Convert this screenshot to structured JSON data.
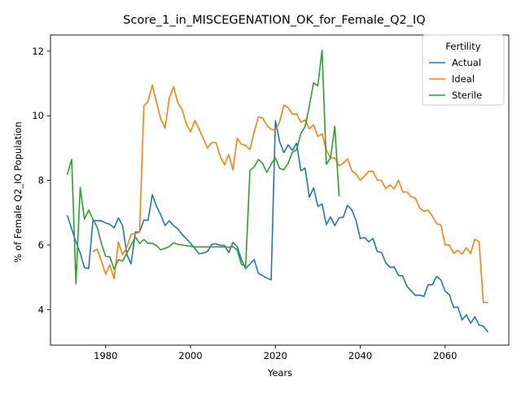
{
  "chart_data": {
    "type": "line",
    "title": "Score_1_in_MISCEGENATION_OK_for_Female_Q2_IQ",
    "xlabel": "Years",
    "ylabel": "% of Female Q2_IQ Population",
    "xlim": [
      1967,
      2075
    ],
    "ylim": [
      2.9,
      12.5
    ],
    "x_ticks": [
      1980,
      2000,
      2020,
      2040,
      2060
    ],
    "y_ticks": [
      4,
      6,
      8,
      10,
      12
    ],
    "grid": false,
    "legend": {
      "title": "Fertility",
      "placement": "top-right",
      "entries": [
        "Actual",
        "Ideal",
        "Sterile"
      ]
    },
    "series": [
      {
        "name": "Actual",
        "color": "#1f77b4",
        "points": [
          [
            1971,
            6.9
          ],
          [
            1972,
            6.5
          ],
          [
            1973,
            6.1
          ],
          [
            1974,
            5.75
          ],
          [
            1975,
            5.3
          ],
          [
            1976,
            5.27
          ],
          [
            1977,
            6.75
          ],
          [
            1978,
            6.75
          ],
          [
            1979,
            6.75
          ],
          [
            1980,
            6.68
          ],
          [
            1981,
            6.64
          ],
          [
            1982,
            6.53
          ],
          [
            1983,
            6.84
          ],
          [
            1984,
            6.6
          ],
          [
            1985,
            5.7
          ],
          [
            1986,
            5.42
          ],
          [
            1987,
            6.4
          ],
          [
            1988,
            6.4
          ],
          [
            1989,
            6.77
          ],
          [
            1990,
            6.77
          ],
          [
            1991,
            7.56
          ],
          [
            1992,
            7.2
          ],
          [
            1993,
            6.93
          ],
          [
            1994,
            6.6
          ],
          [
            1995,
            6.75
          ],
          [
            1996,
            6.6
          ],
          [
            1997,
            6.5
          ],
          [
            1998,
            6.33
          ],
          [
            1999,
            6.2
          ],
          [
            2000,
            6.05
          ],
          [
            2001,
            5.9
          ],
          [
            2002,
            5.73
          ],
          [
            2003,
            5.75
          ],
          [
            2004,
            5.8
          ],
          [
            2005,
            6.02
          ],
          [
            2006,
            6.04
          ],
          [
            2007,
            5.99
          ],
          [
            2008,
            5.99
          ],
          [
            2009,
            5.76
          ],
          [
            2010,
            6.08
          ],
          [
            2011,
            5.95
          ],
          [
            2012,
            5.55
          ],
          [
            2013,
            5.27
          ],
          [
            2014,
            5.41
          ],
          [
            2015,
            5.55
          ],
          [
            2016,
            5.12
          ],
          [
            2017,
            5.05
          ],
          [
            2018,
            4.98
          ],
          [
            2019,
            4.92
          ],
          [
            2020,
            9.85
          ],
          [
            2021,
            9.2
          ],
          [
            2022,
            8.86
          ],
          [
            2023,
            9.1
          ],
          [
            2024,
            8.93
          ],
          [
            2025,
            9.15
          ],
          [
            2026,
            8.3
          ],
          [
            2027,
            8.38
          ],
          [
            2028,
            7.48
          ],
          [
            2029,
            7.77
          ],
          [
            2030,
            7.2
          ],
          [
            2031,
            7.27
          ],
          [
            2032,
            6.63
          ],
          [
            2033,
            6.87
          ],
          [
            2034,
            6.6
          ],
          [
            2035,
            6.84
          ],
          [
            2036,
            6.86
          ],
          [
            2037,
            7.23
          ],
          [
            2038,
            7.09
          ],
          [
            2039,
            6.76
          ],
          [
            2040,
            6.2
          ],
          [
            2041,
            6.23
          ],
          [
            2042,
            6.1
          ],
          [
            2043,
            6.2
          ],
          [
            2044,
            5.8
          ],
          [
            2045,
            5.77
          ],
          [
            2046,
            5.45
          ],
          [
            2047,
            5.31
          ],
          [
            2048,
            5.32
          ],
          [
            2049,
            5.06
          ],
          [
            2050,
            5.04
          ],
          [
            2051,
            4.72
          ],
          [
            2052,
            4.58
          ],
          [
            2053,
            4.44
          ],
          [
            2054,
            4.45
          ],
          [
            2055,
            4.41
          ],
          [
            2056,
            4.77
          ],
          [
            2057,
            4.77
          ],
          [
            2058,
            5.03
          ],
          [
            2059,
            4.92
          ],
          [
            2060,
            4.57
          ],
          [
            2061,
            4.46
          ],
          [
            2062,
            4.07
          ],
          [
            2063,
            4.08
          ],
          [
            2064,
            3.68
          ],
          [
            2065,
            3.84
          ],
          [
            2066,
            3.58
          ],
          [
            2067,
            3.78
          ],
          [
            2068,
            3.52
          ],
          [
            2069,
            3.49
          ],
          [
            2070,
            3.32
          ]
        ]
      },
      {
        "name": "Ideal",
        "color": "#ff7f0e",
        "points": [
          [
            1977,
            5.8
          ],
          [
            1978,
            5.87
          ],
          [
            1979,
            5.5
          ],
          [
            1980,
            5.1
          ],
          [
            1981,
            5.38
          ],
          [
            1982,
            4.96
          ],
          [
            1983,
            6.1
          ],
          [
            1984,
            5.7
          ],
          [
            1985,
            5.93
          ],
          [
            1986,
            6.33
          ],
          [
            1987,
            6.35
          ],
          [
            1988,
            6.4
          ],
          [
            1989,
            10.3
          ],
          [
            1990,
            10.45
          ],
          [
            1991,
            10.95
          ],
          [
            1992,
            10.4
          ],
          [
            1993,
            9.9
          ],
          [
            1994,
            9.62
          ],
          [
            1995,
            10.55
          ],
          [
            1996,
            10.9
          ],
          [
            1997,
            10.4
          ],
          [
            1998,
            10.2
          ],
          [
            1999,
            9.75
          ],
          [
            2000,
            9.5
          ],
          [
            2001,
            9.85
          ],
          [
            2002,
            9.6
          ],
          [
            2003,
            9.3
          ],
          [
            2004,
            9.0
          ],
          [
            2005,
            9.17
          ],
          [
            2006,
            9.17
          ],
          [
            2007,
            8.75
          ],
          [
            2008,
            8.48
          ],
          [
            2009,
            8.8
          ],
          [
            2010,
            8.33
          ],
          [
            2011,
            9.3
          ],
          [
            2012,
            9.12
          ],
          [
            2013,
            9.08
          ],
          [
            2014,
            8.95
          ],
          [
            2015,
            9.5
          ],
          [
            2016,
            9.97
          ],
          [
            2017,
            9.93
          ],
          [
            2018,
            9.7
          ],
          [
            2019,
            9.58
          ],
          [
            2020,
            9.55
          ],
          [
            2021,
            9.81
          ],
          [
            2022,
            10.33
          ],
          [
            2023,
            10.25
          ],
          [
            2024,
            10.05
          ],
          [
            2025,
            10.06
          ],
          [
            2026,
            9.8
          ],
          [
            2027,
            9.87
          ],
          [
            2028,
            9.6
          ],
          [
            2029,
            9.72
          ],
          [
            2030,
            9.36
          ],
          [
            2031,
            9.44
          ],
          [
            2032,
            8.94
          ],
          [
            2033,
            8.7
          ],
          [
            2034,
            8.7
          ],
          [
            2035,
            8.45
          ],
          [
            2036,
            8.53
          ],
          [
            2037,
            8.67
          ],
          [
            2038,
            8.3
          ],
          [
            2039,
            8.2
          ],
          [
            2040,
            8.0
          ],
          [
            2041,
            8.14
          ],
          [
            2042,
            8.28
          ],
          [
            2043,
            8.28
          ],
          [
            2044,
            8.01
          ],
          [
            2045,
            8.0
          ],
          [
            2046,
            7.74
          ],
          [
            2047,
            7.86
          ],
          [
            2048,
            7.74
          ],
          [
            2049,
            8.01
          ],
          [
            2050,
            7.64
          ],
          [
            2051,
            7.64
          ],
          [
            2052,
            7.5
          ],
          [
            2053,
            7.45
          ],
          [
            2054,
            7.15
          ],
          [
            2055,
            7.04
          ],
          [
            2056,
            7.08
          ],
          [
            2057,
            6.9
          ],
          [
            2058,
            6.66
          ],
          [
            2059,
            6.62
          ],
          [
            2060,
            6.0
          ],
          [
            2061,
            6.0
          ],
          [
            2062,
            5.74
          ],
          [
            2063,
            5.84
          ],
          [
            2064,
            5.72
          ],
          [
            2065,
            5.92
          ],
          [
            2066,
            5.74
          ],
          [
            2067,
            6.18
          ],
          [
            2068,
            6.1
          ],
          [
            2069,
            4.22
          ],
          [
            2070,
            4.22
          ]
        ]
      },
      {
        "name": "Sterile",
        "color": "#2ca02c",
        "points": [
          [
            1971,
            8.2
          ],
          [
            1972,
            8.65
          ],
          [
            1973,
            4.8
          ],
          [
            1974,
            7.78
          ],
          [
            1975,
            6.8
          ],
          [
            1976,
            7.08
          ],
          [
            1977,
            6.8
          ],
          [
            1978,
            6.55
          ],
          [
            1979,
            6.05
          ],
          [
            1980,
            5.65
          ],
          [
            1981,
            5.63
          ],
          [
            1982,
            5.25
          ],
          [
            1983,
            5.55
          ],
          [
            1984,
            5.5
          ],
          [
            1985,
            5.75
          ],
          [
            1986,
            6.0
          ],
          [
            1987,
            6.25
          ],
          [
            1988,
            6.05
          ],
          [
            1989,
            6.17
          ],
          [
            1990,
            6.05
          ],
          [
            1991,
            6.05
          ],
          [
            1992,
            5.98
          ],
          [
            1993,
            5.85
          ],
          [
            1994,
            5.9
          ],
          [
            1995,
            5.95
          ],
          [
            1996,
            6.07
          ],
          [
            1997,
            6.02
          ],
          [
            1998,
            6.0
          ],
          [
            1999,
            5.98
          ],
          [
            2000,
            5.96
          ],
          [
            2001,
            5.94
          ],
          [
            2002,
            5.94
          ],
          [
            2003,
            5.94
          ],
          [
            2004,
            5.94
          ],
          [
            2005,
            5.94
          ],
          [
            2006,
            5.94
          ],
          [
            2007,
            5.94
          ],
          [
            2008,
            5.94
          ],
          [
            2009,
            5.93
          ],
          [
            2010,
            5.95
          ],
          [
            2011,
            5.85
          ],
          [
            2012,
            5.4
          ],
          [
            2013,
            5.35
          ],
          [
            2014,
            8.3
          ],
          [
            2015,
            8.42
          ],
          [
            2016,
            8.65
          ],
          [
            2017,
            8.52
          ],
          [
            2018,
            8.25
          ],
          [
            2019,
            8.5
          ],
          [
            2020,
            8.7
          ],
          [
            2021,
            8.37
          ],
          [
            2022,
            8.33
          ],
          [
            2023,
            8.53
          ],
          [
            2024,
            8.87
          ],
          [
            2025,
            8.95
          ],
          [
            2026,
            9.45
          ],
          [
            2027,
            9.66
          ],
          [
            2028,
            10.3
          ],
          [
            2029,
            11.02
          ],
          [
            2030,
            10.93
          ],
          [
            2031,
            12.03
          ],
          [
            2032,
            8.5
          ],
          [
            2033,
            8.7
          ],
          [
            2034,
            9.67
          ],
          [
            2035,
            7.53
          ]
        ]
      }
    ]
  }
}
